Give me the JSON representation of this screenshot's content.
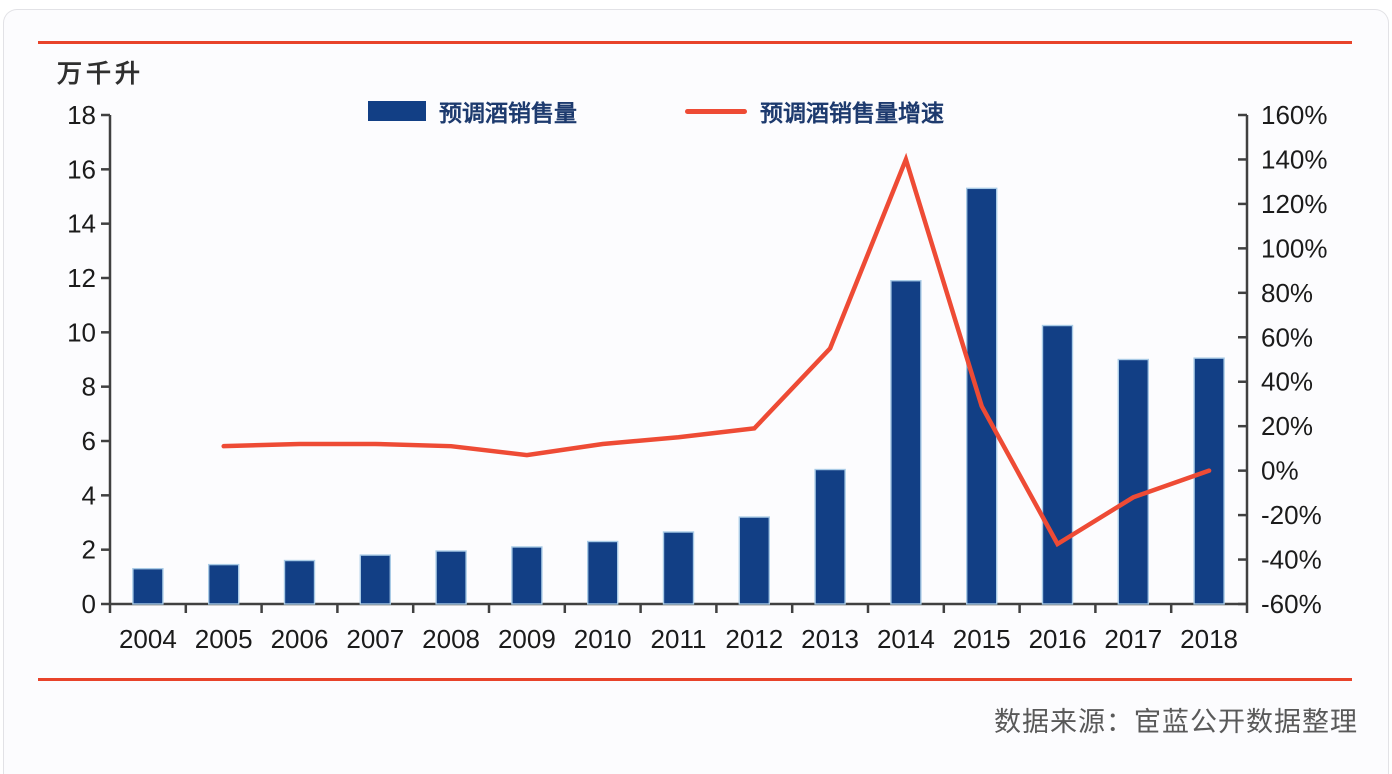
{
  "colors": {
    "divider": "#e8432a",
    "bar_fill": "#123f85",
    "bar_edge": "#a9cbe6",
    "line": "#ee4b35",
    "axis": "#404040",
    "tick_text": "#1b1b1b",
    "legend_text": "#1d3a6e",
    "source_text": "#595959",
    "background": "#fcfcfe"
  },
  "unit_label": "万千升",
  "legend": [
    {
      "label": "预调酒销售量",
      "type": "bar",
      "color": "#123f85"
    },
    {
      "label": "预调酒销售量增速",
      "type": "line",
      "color": "#ee4b35"
    }
  ],
  "source_note": "数据来源：宦蓝公开数据整理",
  "chart_data": {
    "type": "bar+line combo",
    "categories": [
      "2004",
      "2005",
      "2006",
      "2007",
      "2008",
      "2009",
      "2010",
      "2011",
      "2012",
      "2013",
      "2014",
      "2015",
      "2016",
      "2017",
      "2018"
    ],
    "series": [
      {
        "name": "预调酒销售量",
        "type": "bar",
        "axis": "left",
        "color": "#123f85",
        "unit": "万千升",
        "values": [
          1.3,
          1.45,
          1.6,
          1.8,
          1.95,
          2.1,
          2.3,
          2.65,
          3.2,
          4.95,
          11.9,
          15.3,
          10.25,
          9.0,
          9.05
        ]
      },
      {
        "name": "预调酒销售量增速",
        "type": "line",
        "axis": "right",
        "color": "#ee4b35",
        "unit": "%",
        "values": [
          null,
          11,
          12,
          12,
          11,
          7,
          12,
          15,
          19,
          55,
          140,
          29,
          -33,
          -12,
          0
        ]
      }
    ],
    "left_axis": {
      "min": 0,
      "max": 18,
      "step": 2,
      "label": "万千升",
      "suffix": ""
    },
    "right_axis": {
      "min": -60,
      "max": 160,
      "step": 20,
      "label": "",
      "suffix": "%"
    },
    "grid": false,
    "legend_position": "top",
    "title": ""
  }
}
